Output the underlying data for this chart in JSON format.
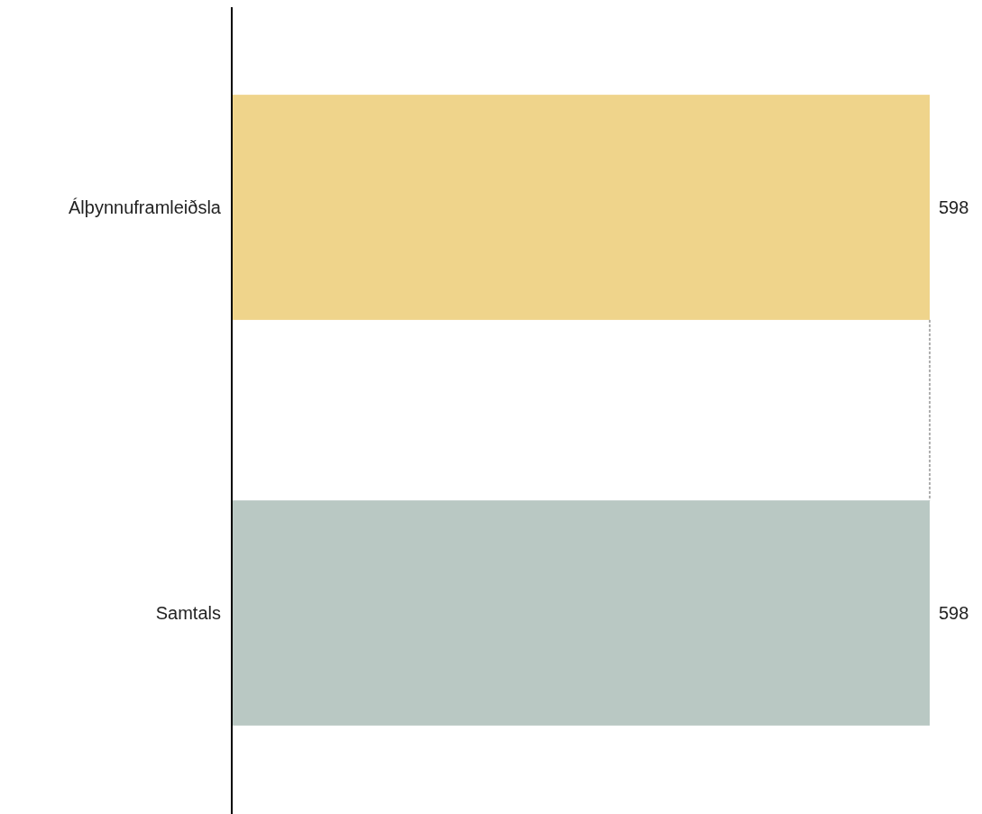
{
  "chart_data": {
    "type": "bar",
    "orientation": "horizontal",
    "categories": [
      "Álþynnuframleiðsla",
      "Samtals"
    ],
    "values": [
      598,
      598
    ],
    "colors": [
      "#efd48b",
      "#b9c8c3"
    ],
    "data_labels": true
  }
}
